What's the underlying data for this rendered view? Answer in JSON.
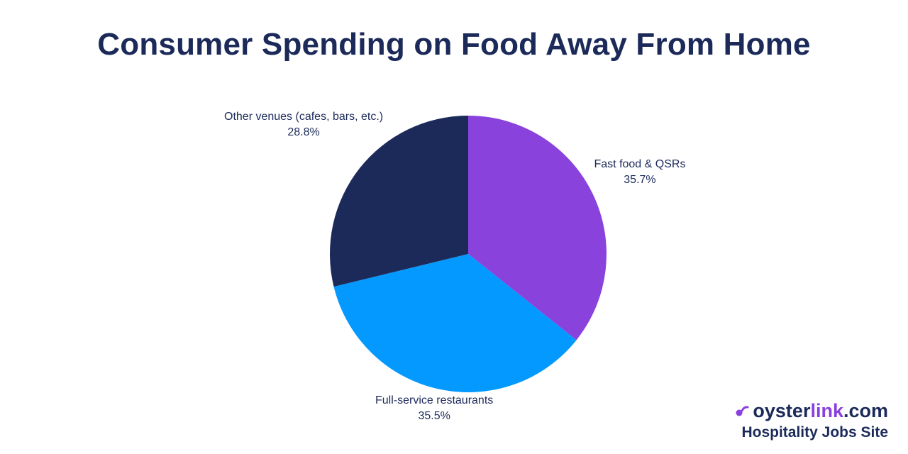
{
  "chart_data": {
    "type": "pie",
    "title": "Consumer Spending on Food Away From Home",
    "slices": [
      {
        "label": "Fast food & QSRs",
        "value_label": "35.7%",
        "value": 35.7,
        "color": "#8a42dd"
      },
      {
        "label": "Full-service restaurants",
        "value_label": "35.5%",
        "value": 35.5,
        "color": "#0399ff"
      },
      {
        "label": "Other venues (cafes, bars, etc.)",
        "value_label": "28.8%",
        "value": 28.8,
        "color": "#1c2a5a"
      }
    ]
  },
  "brand": {
    "name_part1": "oyster",
    "name_part2": "link",
    "name_part3": ".com",
    "tagline": "Hospitality Jobs Site",
    "icon": "oyster-logo-icon",
    "accent_color": "#8a3fe0"
  }
}
